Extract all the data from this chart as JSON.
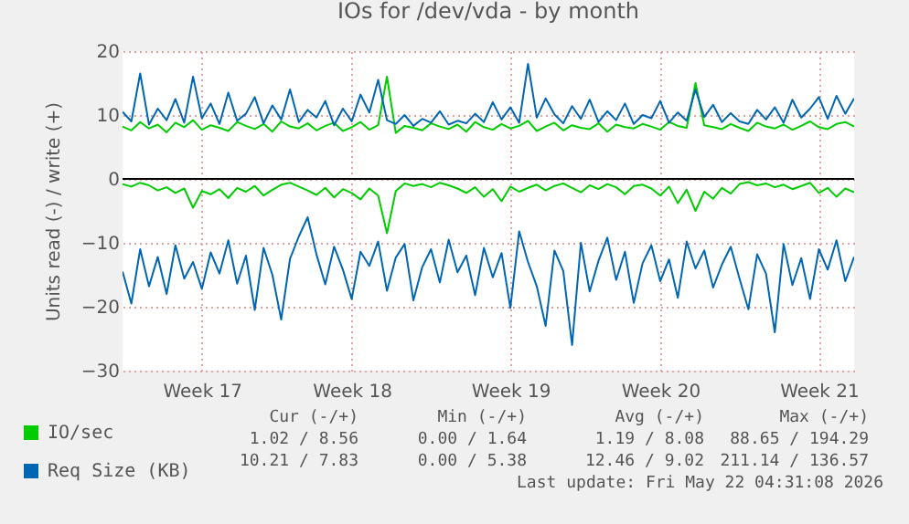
{
  "chart_data": {
    "type": "line",
    "title": "IOs for /dev/vda - by month",
    "ylabel": "Units read (-) / write (+)",
    "categories": [
      null,
      null,
      null,
      null,
      null,
      null,
      null,
      null,
      null,
      "Week 17",
      null,
      null,
      null,
      null,
      null,
      null,
      null,
      null,
      null,
      null,
      null,
      null,
      null,
      null,
      null,
      null,
      "Week 18",
      null,
      null,
      null,
      null,
      null,
      null,
      null,
      null,
      null,
      null,
      null,
      null,
      null,
      null,
      null,
      null,
      null,
      "Week 19",
      null,
      null,
      null,
      null,
      null,
      null,
      null,
      null,
      null,
      null,
      null,
      null,
      null,
      null,
      null,
      null,
      "Week 20",
      null,
      null,
      null,
      null,
      null,
      null,
      null,
      null,
      null,
      null,
      null,
      null,
      null,
      null,
      null,
      null,
      null,
      "Week 21",
      null,
      null,
      null,
      null
    ],
    "series": [
      {
        "name": "IO/sec",
        "color": "#00cc00",
        "values": [
          8.2,
          7.6,
          8.9,
          7.9,
          8.5,
          7.3,
          8.8,
          8.1,
          9.2,
          7.7,
          8.4,
          8.0,
          7.5,
          8.9,
          8.3,
          7.8,
          8.6,
          7.4,
          9.0,
          8.2,
          7.9,
          8.7,
          7.6,
          8.3,
          8.8,
          7.5,
          8.1,
          8.9,
          7.7,
          8.4,
          16.0,
          7.2,
          8.3,
          8.0,
          7.6,
          8.7,
          8.2,
          7.8,
          8.5,
          7.4,
          8.9,
          8.1,
          7.7,
          8.6,
          7.9,
          8.3,
          9.1,
          7.5,
          8.2,
          8.8,
          7.6,
          8.4,
          8.0,
          7.8,
          8.7,
          7.4,
          8.5,
          8.1,
          7.9,
          8.6,
          8.2,
          7.7,
          8.9,
          8.3,
          8.0,
          15.0,
          8.4,
          8.1,
          7.8,
          8.6,
          8.0,
          7.5,
          8.8,
          8.2,
          7.9,
          8.5,
          7.7,
          8.3,
          9.0,
          8.1,
          7.8,
          8.6,
          8.9,
          8.2
        ]
      },
      {
        "name": "Req Size (KB)",
        "color": "#0066b3",
        "values": [
          10.5,
          9.0,
          16.5,
          8.5,
          11.0,
          9.2,
          12.5,
          8.8,
          16.0,
          9.5,
          11.8,
          8.6,
          13.5,
          9.1,
          10.2,
          12.8,
          8.7,
          11.5,
          9.3,
          14.0,
          8.9,
          10.8,
          9.6,
          12.2,
          8.4,
          11.0,
          9.0,
          13.2,
          10.4,
          15.5,
          9.2,
          8.6,
          10.0,
          8.3,
          9.4,
          8.8,
          10.6,
          8.5,
          9.1,
          8.7,
          10.2,
          8.9,
          12.0,
          9.3,
          11.2,
          8.8,
          18.0,
          9.6,
          12.6,
          10.1,
          8.7,
          11.4,
          9.4,
          12.4,
          8.9,
          10.6,
          9.2,
          11.8,
          8.6,
          10.0,
          9.5,
          12.2,
          8.8,
          10.4,
          9.1,
          14.0,
          9.7,
          11.6,
          8.9,
          10.3,
          9.0,
          8.6,
          10.8,
          9.3,
          11.2,
          8.8,
          12.4,
          9.6,
          11.0,
          12.8,
          9.4,
          13.0,
          10.2,
          12.6
        ]
      },
      {
        "color": "#00cc00",
        "values": [
          -0.8,
          -1.2,
          -0.6,
          -1.0,
          -1.8,
          -1.3,
          -2.2,
          -1.5,
          -4.5,
          -1.9,
          -2.4,
          -1.6,
          -3.0,
          -1.4,
          -2.0,
          -1.1,
          -2.6,
          -1.7,
          -0.9,
          -0.6,
          -1.2,
          -1.8,
          -2.5,
          -1.4,
          -2.9,
          -1.6,
          -2.2,
          -3.2,
          -1.5,
          -2.6,
          -8.5,
          -1.9,
          -0.7,
          -1.1,
          -0.8,
          -1.3,
          -0.6,
          -1.0,
          -1.5,
          -2.2,
          -1.3,
          -2.8,
          -1.6,
          -3.5,
          -1.2,
          -2.0,
          -1.4,
          -0.9,
          -1.8,
          -1.1,
          -0.7,
          -1.4,
          -2.1,
          -1.0,
          -1.6,
          -0.8,
          -1.3,
          -2.4,
          -1.1,
          -0.9,
          -1.5,
          -2.6,
          -1.2,
          -3.8,
          -1.7,
          -5.0,
          -2.0,
          -3.1,
          -1.4,
          -2.3,
          -0.8,
          -0.5,
          -1.0,
          -0.7,
          -1.3,
          -0.9,
          -1.6,
          -1.1,
          -0.6,
          -2.2,
          -1.4,
          -2.8,
          -1.5,
          -2.1
        ]
      },
      {
        "color": "#0066b3",
        "values": [
          -14.5,
          -19.5,
          -11.0,
          -16.8,
          -12.2,
          -18.0,
          -10.4,
          -15.6,
          -13.0,
          -17.2,
          -11.5,
          -14.8,
          -9.6,
          -16.4,
          -12.0,
          -20.5,
          -10.8,
          -15.0,
          -22.0,
          -12.5,
          -9.0,
          -6.0,
          -11.8,
          -16.5,
          -10.6,
          -14.2,
          -18.8,
          -11.4,
          -13.6,
          -9.8,
          -17.5,
          -12.3,
          -10.2,
          -19.0,
          -13.8,
          -11.0,
          -16.2,
          -9.5,
          -14.6,
          -12.0,
          -18.2,
          -10.8,
          -15.4,
          -11.6,
          -20.2,
          -8.2,
          -13.0,
          -16.8,
          -23.0,
          -11.2,
          -14.4,
          -26.0,
          -10.0,
          -17.6,
          -12.8,
          -9.2,
          -15.8,
          -11.4,
          -19.4,
          -13.2,
          -10.4,
          -16.0,
          -12.6,
          -18.6,
          -9.8,
          -14.0,
          -11.2,
          -17.0,
          -13.4,
          -10.6,
          -15.6,
          -20.4,
          -11.8,
          -14.8,
          -24.0,
          -10.2,
          -16.6,
          -12.4,
          -18.8,
          -11.0,
          -14.2,
          -9.6,
          -16.0,
          -12.2
        ]
      }
    ],
    "ylim": [
      -30,
      20
    ],
    "yticks": [
      -30,
      -20,
      -10,
      0,
      10,
      20
    ],
    "grid": true,
    "legend": "bottom left",
    "ref_lines": [
      {
        "axis": "y",
        "value": 0,
        "color": "#000000"
      }
    ],
    "annotations": [
      "Cur (-/+)",
      "Min (-/+)",
      "Avg (-/+)",
      "Max (-/+)",
      "1.02 / 8.56",
      "0.00 / 1.64",
      "1.19 / 8.08",
      "88.65 / 194.29",
      "10.21 / 7.83",
      "0.00 / 5.38",
      "12.46 / 9.02",
      "211.14 / 136.57",
      "Last update: Fri May 22 04:31:08 2026"
    ]
  }
}
